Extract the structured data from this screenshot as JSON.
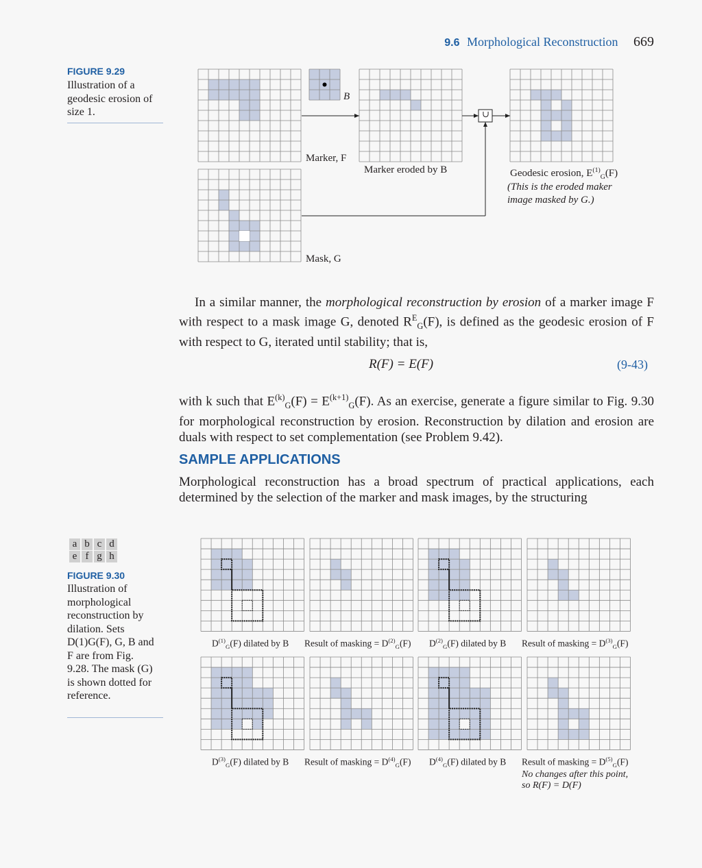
{
  "header": {
    "section_number": "9.6",
    "section_title": "Morphological Reconstruction",
    "page_number": "669"
  },
  "figure_929": {
    "label": "FIGURE 9.29",
    "caption": "Illustration of a geodesic erosion of size 1.",
    "labels": {
      "b": "B",
      "marker": "Marker, F",
      "eroded": "Marker eroded by B",
      "geodesic": "Geodesic erosion, E",
      "geodesic_sup": "(1)",
      "geodesic_sub": "G",
      "geodesic_arg": "(F)",
      "note_line1": "(This is the eroded maker",
      "note_line2": "image masked by G.)",
      "mask": "Mask, G",
      "union_symbol": "∪"
    }
  },
  "body": {
    "para1_a": "In a similar manner, the ",
    "para1_em": "morphological reconstruction by erosion",
    "para1_b": " of a marker image F with respect to a mask image G, denoted R",
    "para1_c": "(F), is defined as the geodesic erosion of F with respect to G, iterated until stability; that is,",
    "equation": "R(F) = E(F)",
    "equation_number": "(9-43)",
    "para2_a": "with k such that E",
    "para2_b": "(F) = E",
    "para2_c": "(F). As an exercise, generate a figure similar to Fig. 9.30 for morphological reconstruction by erosion. Reconstruction by dilation and erosion are duals with respect to set complementation (see Problem 9.42).",
    "heading": "SAMPLE APPLICATIONS",
    "para3": "Morphological reconstruction has a broad spectrum of practical applications, each determined by the selection of the marker and mask images, by the structuring"
  },
  "figure_930": {
    "panel_letters_row1": [
      "a",
      "b",
      "c",
      "d"
    ],
    "panel_letters_row2": [
      "e",
      "f",
      "g",
      "h"
    ],
    "label": "FIGURE 9.30",
    "caption": "Illustration of morphological reconstruction by dilation. Sets D(1)G(F), G, B and F are from Fig. 9.28. The mask (G) is shown dotted for reference.",
    "panels": [
      {
        "pre": "D",
        "sup": "(1)",
        "sub": "G",
        "post": "(F) dilated by B"
      },
      {
        "pre": "Result of masking = D",
        "sup": "(2)",
        "sub": "G",
        "post": "(F)"
      },
      {
        "pre": "D",
        "sup": "(2)",
        "sub": "G",
        "post": "(F) dilated by B"
      },
      {
        "pre": "Result of masking = D",
        "sup": "(3)",
        "sub": "G",
        "post": "(F)"
      },
      {
        "pre": "D",
        "sup": "(3)",
        "sub": "G",
        "post": "(F) dilated by B"
      },
      {
        "pre": "Result of masking = D",
        "sup": "(4)",
        "sub": "G",
        "post": "(F)"
      },
      {
        "pre": "D",
        "sup": "(4)",
        "sub": "G",
        "post": "(F) dilated by B"
      },
      {
        "pre": "Result of masking = D",
        "sup": "(5)",
        "sub": "G",
        "post": "(F)"
      }
    ],
    "final_note_line1": "No changes after this point,",
    "final_note_line2": "so R(F) = D(F)"
  },
  "colors": {
    "fill": "#c5cde0",
    "grid": "#8a8a8a",
    "accent": "#1f5fa3"
  }
}
